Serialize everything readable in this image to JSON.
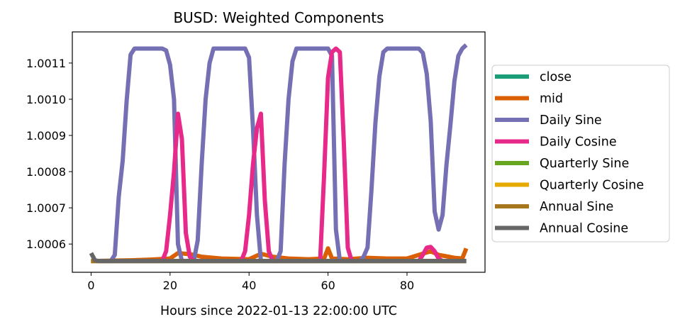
{
  "chart_data": {
    "type": "line",
    "title": "BUSD: Weighted Components",
    "xlabel": "Hours since 2022-01-13 22:00:00 UTC",
    "ylabel": "",
    "xlim": [
      -4.75,
      99.75
    ],
    "ylim": [
      1.000522,
      1.001186
    ],
    "xticks": [
      0,
      20,
      40,
      60,
      80
    ],
    "xtick_labels": [
      "0",
      "20",
      "40",
      "60",
      "80"
    ],
    "yticks": [
      1.0006,
      1.0007,
      1.0008,
      1.0009,
      1.001,
      1.0011
    ],
    "ytick_labels": [
      "1.0006",
      "1.0007",
      "1.0008",
      "1.0009",
      "1.0010",
      "1.0011"
    ],
    "grid": false,
    "legend_position": "outside-right",
    "series": [
      {
        "name": "close",
        "color": "#1b9e77",
        "points": [
          [
            0,
            1.000553
          ],
          [
            95,
            1.000553
          ]
        ]
      },
      {
        "name": "mid",
        "color": "#d95f02",
        "points": [
          [
            0,
            1.000553
          ],
          [
            10,
            1.000555
          ],
          [
            15,
            1.000557
          ],
          [
            20,
            1.00056
          ],
          [
            22,
            1.000575
          ],
          [
            25,
            1.000572
          ],
          [
            28,
            1.000565
          ],
          [
            33,
            1.00056
          ],
          [
            40,
            1.000558
          ],
          [
            43,
            1.000573
          ],
          [
            46,
            1.000565
          ],
          [
            50,
            1.00056
          ],
          [
            55,
            1.000558
          ],
          [
            59,
            1.00056
          ],
          [
            60,
            1.000588
          ],
          [
            61,
            1.00056
          ],
          [
            65,
            1.000558
          ],
          [
            70,
            1.000562
          ],
          [
            75,
            1.00056
          ],
          [
            80,
            1.00056
          ],
          [
            83,
            1.00057
          ],
          [
            86,
            1.00058
          ],
          [
            88,
            1.00057
          ],
          [
            92,
            1.000562
          ],
          [
            94,
            1.00056
          ],
          [
            95,
            1.000588
          ]
        ]
      },
      {
        "name": "Daily Sine",
        "color": "#7570b3",
        "points": [
          [
            0,
            1.000553
          ],
          [
            5,
            1.000553
          ],
          [
            6,
            1.00057
          ],
          [
            7,
            1.00073
          ],
          [
            8,
            1.00083
          ],
          [
            9,
            1.000995
          ],
          [
            10,
            1.001123
          ],
          [
            11,
            1.00114
          ],
          [
            18,
            1.00114
          ],
          [
            19,
            1.001135
          ],
          [
            20,
            1.001095
          ],
          [
            21,
            1.001
          ],
          [
            22,
            1.0006
          ],
          [
            23,
            1.000553
          ],
          [
            26,
            1.000553
          ],
          [
            27,
            1.00061
          ],
          [
            28,
            1.00082
          ],
          [
            29,
            1.001
          ],
          [
            30,
            1.0011
          ],
          [
            31,
            1.00114
          ],
          [
            39,
            1.00114
          ],
          [
            40,
            1.001115
          ],
          [
            41,
            1.00092
          ],
          [
            42,
            1.00068
          ],
          [
            43,
            1.000553
          ],
          [
            47,
            1.000553
          ],
          [
            48,
            1.00058
          ],
          [
            49,
            1.00082
          ],
          [
            50,
            1.001
          ],
          [
            51,
            1.001105
          ],
          [
            52,
            1.00114
          ],
          [
            60,
            1.00114
          ],
          [
            61,
            1.00112
          ],
          [
            62,
            1.00064
          ],
          [
            63,
            1.000553
          ],
          [
            68,
            1.000553
          ],
          [
            69,
            1.000565
          ],
          [
            70,
            1.00059
          ],
          [
            71,
            1.00075
          ],
          [
            72,
            1.000935
          ],
          [
            73,
            1.001063
          ],
          [
            74,
            1.00113
          ],
          [
            75,
            1.00114
          ],
          [
            83,
            1.00114
          ],
          [
            84,
            1.001128
          ],
          [
            85,
            1.00107
          ],
          [
            86,
            1.00094
          ],
          [
            87,
            1.00069
          ],
          [
            88,
            1.00064
          ],
          [
            89,
            1.00068
          ],
          [
            90,
            1.00082
          ],
          [
            91,
            1.00093
          ],
          [
            92,
            1.00105
          ],
          [
            93,
            1.00112
          ],
          [
            94,
            1.00114
          ],
          [
            95,
            1.00115
          ]
        ]
      },
      {
        "name": "Daily Cosine",
        "color": "#e7298a",
        "points": [
          [
            0,
            1.000553
          ],
          [
            18,
            1.000553
          ],
          [
            19,
            1.00058
          ],
          [
            20,
            1.00068
          ],
          [
            21,
            1.0008
          ],
          [
            22,
            1.00096
          ],
          [
            23,
            1.00089
          ],
          [
            24,
            1.00063
          ],
          [
            25,
            1.000565
          ],
          [
            26,
            1.000553
          ],
          [
            38,
            1.000553
          ],
          [
            39,
            1.00058
          ],
          [
            40,
            1.00068
          ],
          [
            41,
            1.00082
          ],
          [
            42,
            1.00092
          ],
          [
            43,
            1.00096
          ],
          [
            44,
            1.00072
          ],
          [
            45,
            1.00058
          ],
          [
            46,
            1.000553
          ],
          [
            58,
            1.000553
          ],
          [
            59,
            1.00079
          ],
          [
            60,
            1.00106
          ],
          [
            61,
            1.00113
          ],
          [
            62,
            1.00114
          ],
          [
            63,
            1.00113
          ],
          [
            64,
            1.00088
          ],
          [
            65,
            1.00059
          ],
          [
            66,
            1.000553
          ],
          [
            83,
            1.000553
          ],
          [
            84,
            1.00057
          ],
          [
            85,
            1.00059
          ],
          [
            86,
            1.000592
          ],
          [
            87,
            1.00058
          ],
          [
            88,
            1.00056
          ],
          [
            89,
            1.000553
          ],
          [
            95,
            1.000553
          ]
        ]
      },
      {
        "name": "Quarterly Sine",
        "color": "#66a61e",
        "points": [
          [
            0,
            1.000553
          ],
          [
            95,
            1.000553
          ]
        ]
      },
      {
        "name": "Quarterly Cosine",
        "color": "#e6ab02",
        "points": [
          [
            0,
            1.000553
          ],
          [
            95,
            1.000553
          ]
        ]
      },
      {
        "name": "Annual Sine",
        "color": "#a6761d",
        "points": [
          [
            0,
            1.000553
          ],
          [
            95,
            1.000553
          ]
        ]
      },
      {
        "name": "Annual Cosine",
        "color": "#666666",
        "points": [
          [
            0,
            1.000575
          ],
          [
            1,
            1.000555
          ],
          [
            2,
            1.000553
          ],
          [
            95,
            1.000553
          ]
        ]
      }
    ]
  }
}
